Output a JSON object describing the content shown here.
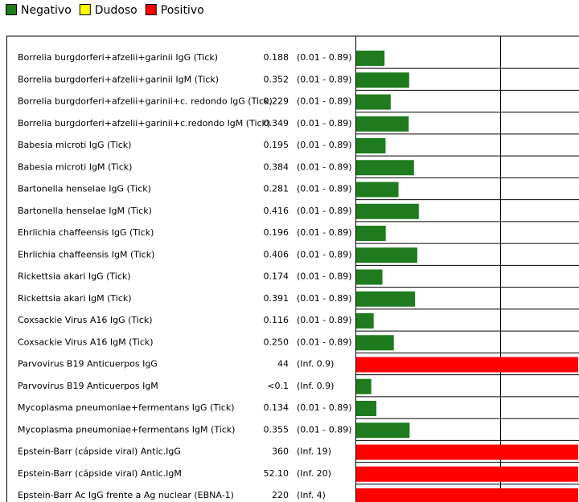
{
  "chart_data": {
    "type": "hbar-list",
    "legend": [
      {
        "name": "Negativo",
        "color": "#1e7b1e"
      },
      {
        "name": "Dudoso",
        "color": "#ffff00"
      },
      {
        "name": "Positivo",
        "color": "#ff0000"
      }
    ],
    "rows": [
      {
        "name": "Borrelia burgdorferi+afzelii+garinii IgG (Tick)",
        "value": 0.188,
        "range": "(0.01 - 0.89)",
        "color": "#1e7b1e"
      },
      {
        "name": "Borrelia burgdorferi+afzelii+garinii IgM (Tick)",
        "value": 0.352,
        "range": "(0.01 - 0.89)",
        "color": "#1e7b1e"
      },
      {
        "name": "Borrelia burgdorferi+afzelii+garinii+c. redondo IgG (Tick)",
        "value": 0.229,
        "range": "(0.01 - 0.89)",
        "color": "#1e7b1e"
      },
      {
        "name": "Borrelia burgdorferi+afzelii+garinii+c.redondo IgM (Tick)",
        "value": 0.349,
        "range": "(0.01 - 0.89)",
        "color": "#1e7b1e"
      },
      {
        "name": "Babesia microti IgG (Tick)",
        "value": 0.195,
        "range": "(0.01 - 0.89)",
        "color": "#1e7b1e"
      },
      {
        "name": "Babesia microti IgM (Tick)",
        "value": 0.384,
        "range": "(0.01 - 0.89)",
        "color": "#1e7b1e"
      },
      {
        "name": "Bartonella henselae IgG (Tick)",
        "value": 0.281,
        "range": "(0.01 - 0.89)",
        "color": "#1e7b1e"
      },
      {
        "name": "Bartonella henselae IgM (Tick)",
        "value": 0.416,
        "range": "(0.01 - 0.89)",
        "color": "#1e7b1e"
      },
      {
        "name": "Ehrlichia chaffeensis IgG (Tick)",
        "value": 0.196,
        "range": "(0.01 - 0.89)",
        "color": "#1e7b1e"
      },
      {
        "name": "Ehrlichia chaffeensis IgM (Tick)",
        "value": 0.406,
        "range": "(0.01 - 0.89)",
        "color": "#1e7b1e"
      },
      {
        "name": "Rickettsia akari IgG (Tick)",
        "value": 0.174,
        "range": "(0.01 - 0.89)",
        "color": "#1e7b1e"
      },
      {
        "name": "Rickettsia akari IgM (Tick)",
        "value": 0.391,
        "range": "(0.01 - 0.89)",
        "color": "#1e7b1e"
      },
      {
        "name": "Coxsackie Virus A16 IgG (Tick)",
        "value": 0.116,
        "range": "(0.01 - 0.89)",
        "color": "#1e7b1e"
      },
      {
        "name": "Coxsackie Virus A16 IgM (Tick)",
        "value": 0.25,
        "value_label": "0.250",
        "range": "(0.01 - 0.89)",
        "color": "#1e7b1e"
      },
      {
        "name": "Parvovirus B19 Anticuerpos IgG",
        "value": 44,
        "range": "(Inf. 0.9)",
        "color": "#ff0000"
      },
      {
        "name": "Parvovirus B19 Anticuerpos IgM",
        "value": 0.1,
        "value_label": "<0.1",
        "range": "(Inf. 0.9)",
        "color": "#1e7b1e"
      },
      {
        "name": "Mycoplasma pneumoniae+fermentans IgG (Tick)",
        "value": 0.134,
        "range": "(0.01 - 0.89)",
        "color": "#1e7b1e"
      },
      {
        "name": "Mycoplasma pneumoniae+fermentans IgM (Tick)",
        "value": 0.355,
        "range": "(0.01 - 0.89)",
        "color": "#1e7b1e"
      },
      {
        "name": "Epstein-Barr (cápside viral) Antic.IgG",
        "value": 360,
        "range": "(Inf. 19)",
        "color": "#ff0000"
      },
      {
        "name": "Epstein-Barr (cápside viral) Antic.IgM",
        "value": 52.1,
        "value_label": "52.10",
        "range": "(Inf. 20)",
        "color": "#ff0000"
      },
      {
        "name": "Epstein-Barr Ac IgG frente a Ag nuclear (EBNA-1)",
        "value": 220,
        "range": "(Inf. 4)",
        "color": "#ff0000"
      }
    ]
  }
}
